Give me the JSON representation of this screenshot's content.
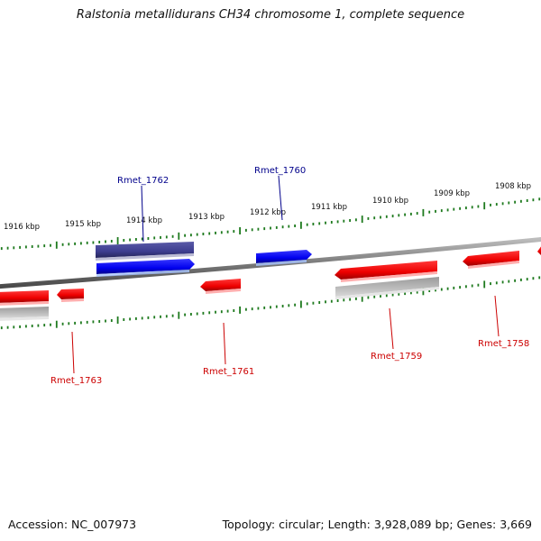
{
  "title": "Ralstonia metallidurans CH34 chromosome 1, complete sequence",
  "footer": {
    "accession": "Accession: NC_007973",
    "topology": "Topology: circular; Length: 3,928,089 bp; Genes: 3,669"
  },
  "colors": {
    "backbone": "#808080",
    "tick": "#1e7a1e",
    "gene_forward": "#0000ee",
    "gene_forward_dark": "#3d3d8f",
    "gene_reverse": "#ee0000",
    "gene_gray": "#b0b0b0",
    "label_forward": "#00008b",
    "label_reverse": "#cc0000"
  },
  "scale_labels": [
    "1916 kbp",
    "1915 kbp",
    "1914 kbp",
    "1913 kbp",
    "1912 kbp",
    "1911 kbp",
    "1910 kbp",
    "1909 kbp",
    "1908 kbp"
  ],
  "gene_labels": [
    {
      "id": "rmet1762",
      "text": "Rmet_1762",
      "strand": "forward"
    },
    {
      "id": "rmet1760",
      "text": "Rmet_1760",
      "strand": "forward"
    },
    {
      "id": "rmet1763",
      "text": "Rmet_1763",
      "strand": "reverse"
    },
    {
      "id": "rmet1761",
      "text": "Rmet_1761",
      "strand": "reverse"
    },
    {
      "id": "rmet1759",
      "text": "Rmet_1759",
      "strand": "reverse"
    },
    {
      "id": "rmet1758",
      "text": "Rmet_1758",
      "strand": "reverse"
    }
  ]
}
